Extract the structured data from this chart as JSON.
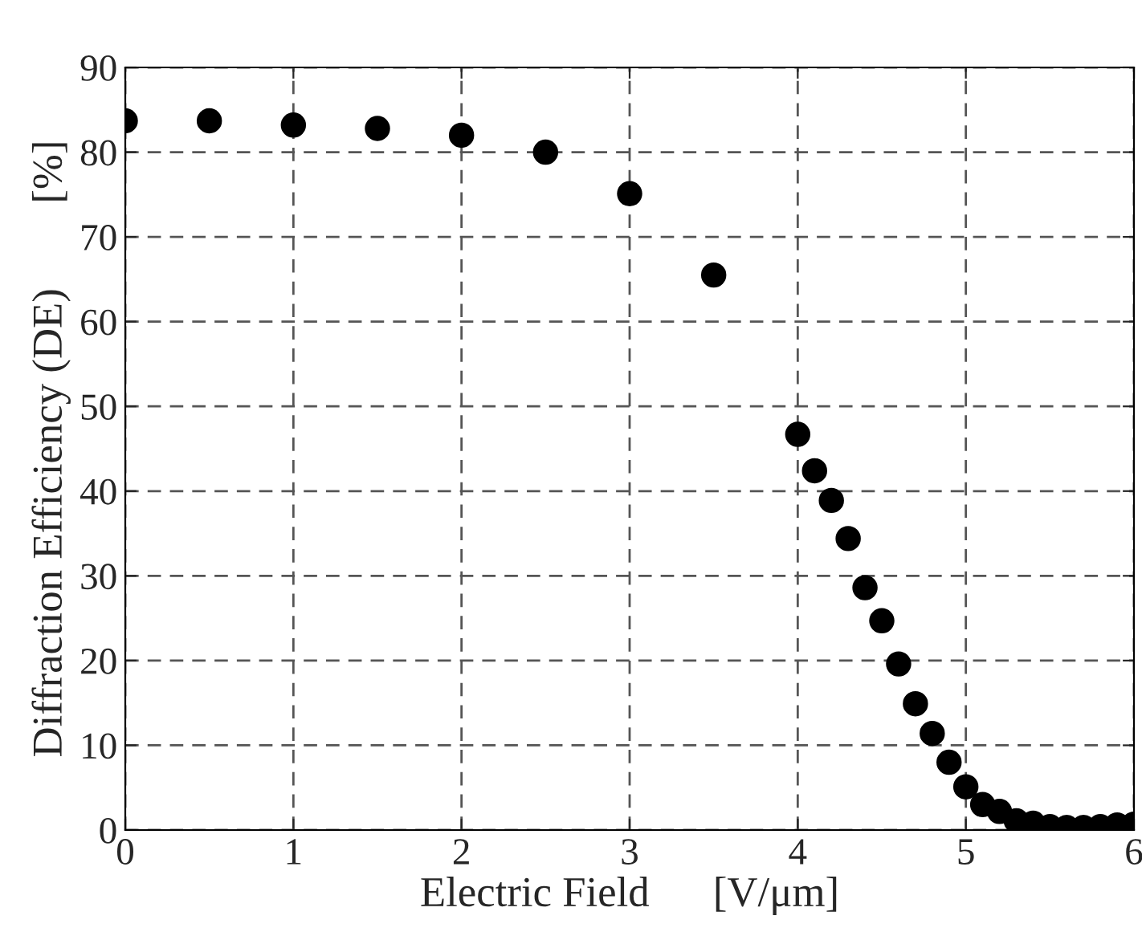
{
  "chart_data": {
    "type": "scatter",
    "xlabel": "Electric Field      [V/μm]",
    "ylabel": "Diffraction Efficiency (DE)        [%]",
    "x": [
      0,
      0.5,
      1,
      1.5,
      2,
      2.5,
      3,
      3.5,
      4.0,
      4.1,
      4.2,
      4.3,
      4.4,
      4.5,
      4.6,
      4.7,
      4.8,
      4.9,
      5.0,
      5.1,
      5.2,
      5.3,
      5.4,
      5.5,
      5.6,
      5.7,
      5.8,
      5.9,
      6.0
    ],
    "series": [
      {
        "color": "#000000",
        "values": [
          83.7,
          83.7,
          83.2,
          82.8,
          82.0,
          80.0,
          75.1,
          65.5,
          46.7,
          42.4,
          38.9,
          34.4,
          28.6,
          24.7,
          19.6,
          14.9,
          11.4,
          8.0,
          5.1,
          3.0,
          2.2,
          1.1,
          0.8,
          0.4,
          0.3,
          0.3,
          0.4,
          0.6,
          0.7
        ]
      }
    ],
    "xlim": [
      0,
      6
    ],
    "xticks": [
      0,
      1,
      2,
      3,
      4,
      5,
      6
    ],
    "ylim": [
      0,
      90
    ],
    "yticks": [
      0,
      10,
      20,
      30,
      40,
      50,
      60,
      70,
      80,
      90
    ],
    "grid": true,
    "marker": "circle"
  }
}
